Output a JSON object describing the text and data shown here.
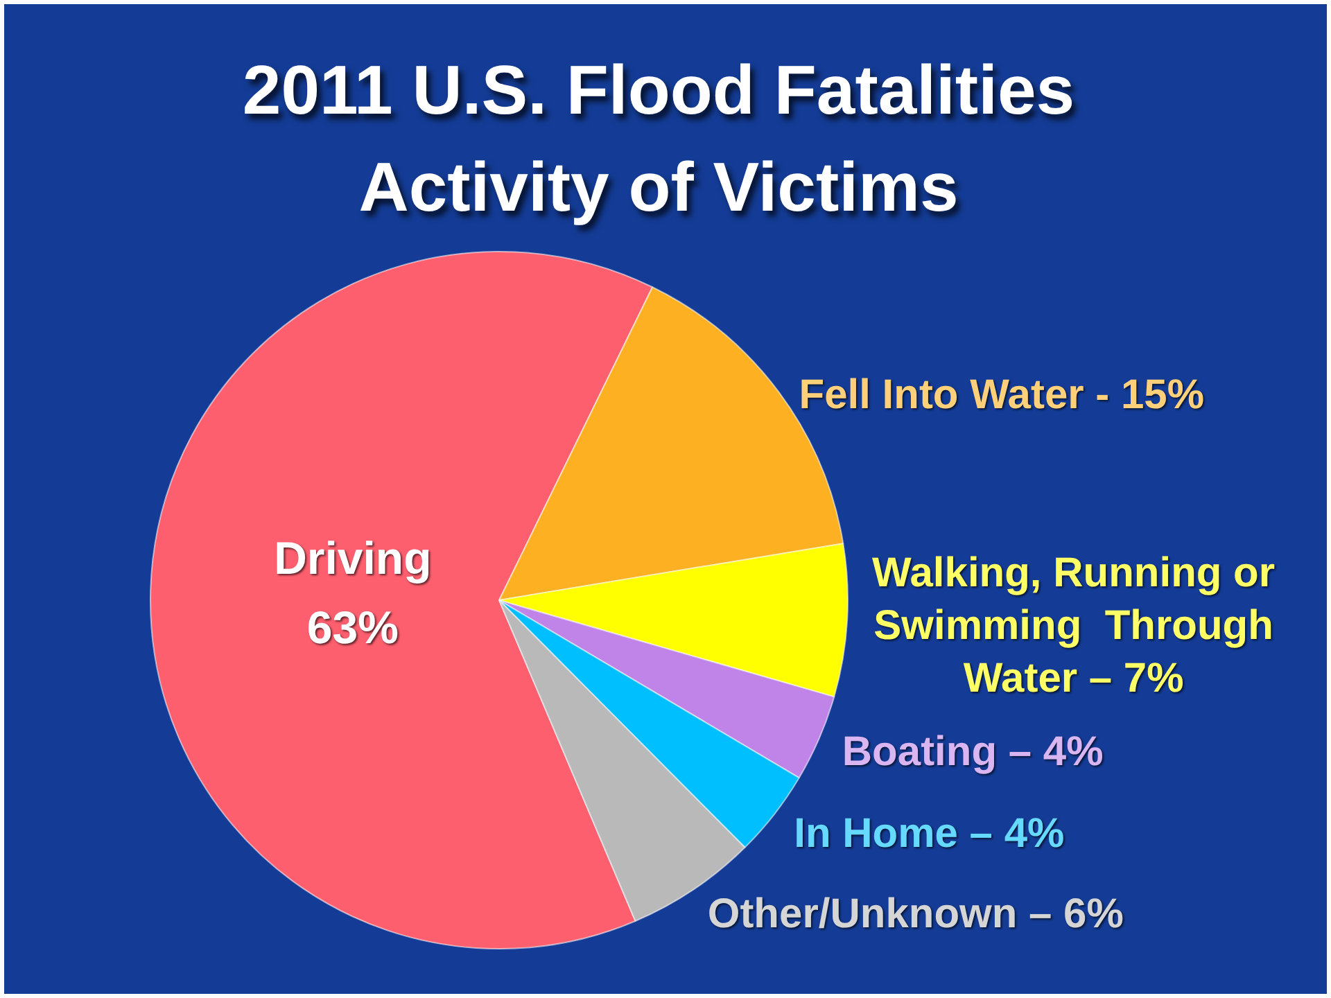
{
  "chart_data": {
    "type": "pie",
    "title": "2011 U.S. Flood Fatalities",
    "subtitle": "Activity of Victims",
    "categories": [
      "Driving",
      "Fell Into Water -",
      "Walking, Running or Swimming  Through Water –",
      "Boating –",
      "In Home –",
      "Other/Unknown –"
    ],
    "values": [
      63,
      15,
      7,
      4,
      4,
      6
    ],
    "colors": [
      "#fe5f6f",
      "#fdb122",
      "#ffff00",
      "#c084e8",
      "#00bfff",
      "#b9b9b9"
    ],
    "value_labels": [
      "63%",
      "15%",
      "7%",
      "4%",
      "4%",
      "6%"
    ]
  }
}
